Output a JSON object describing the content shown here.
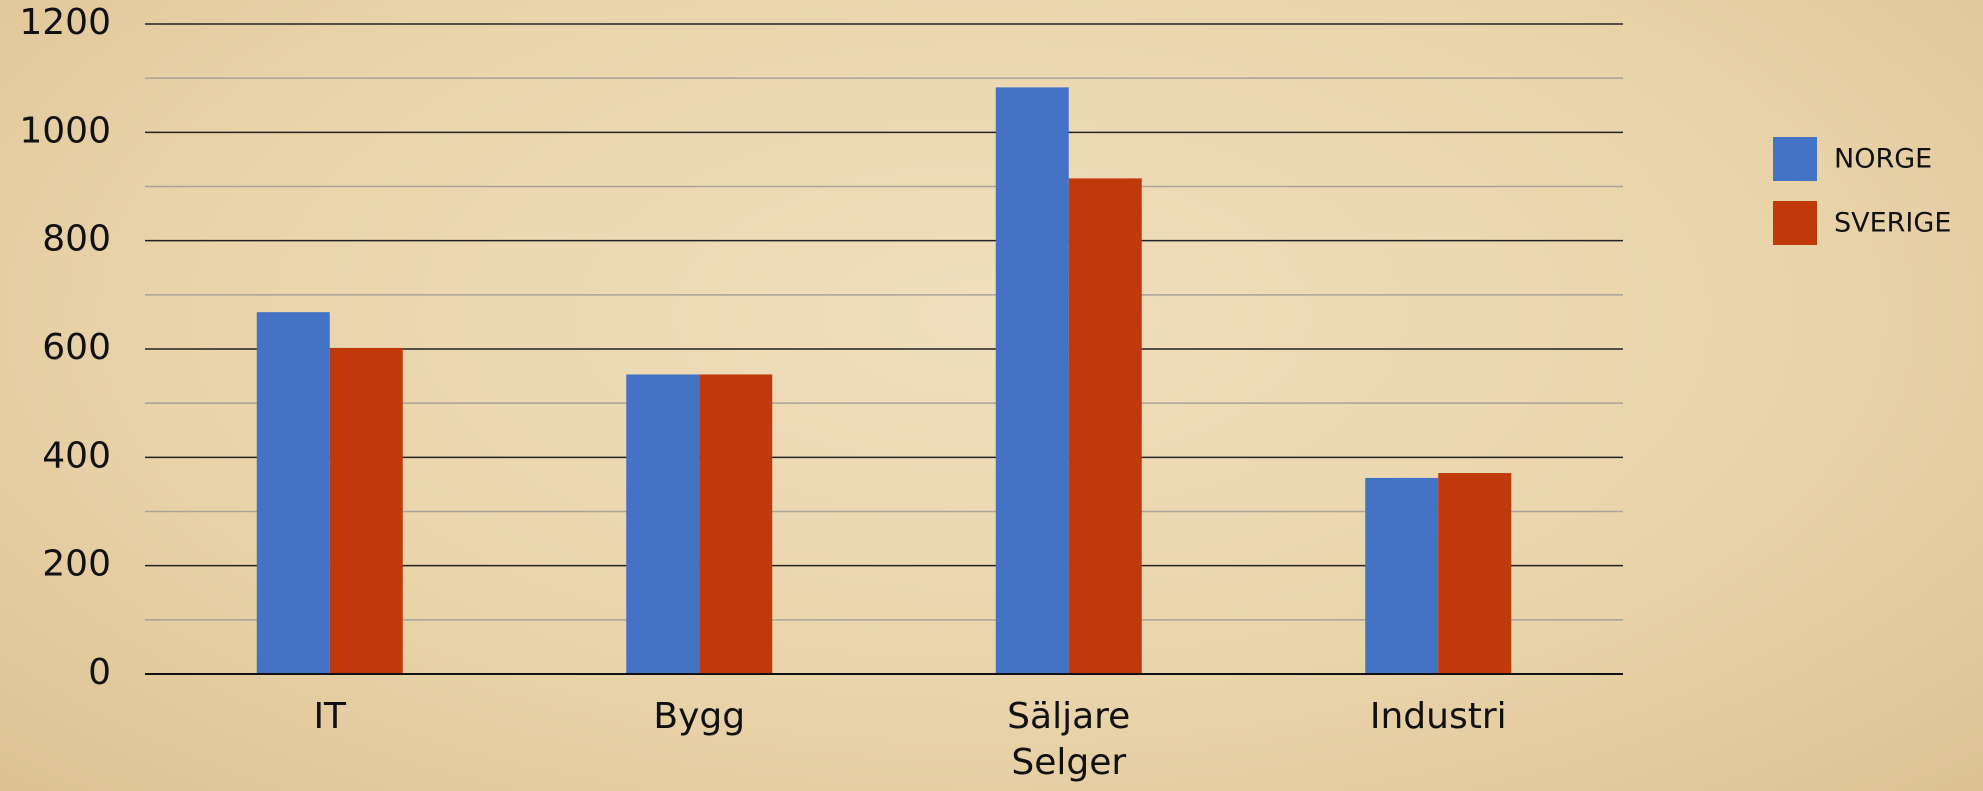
{
  "chart_data": {
    "type": "bar",
    "categories": [
      "IT",
      "Bygg",
      "Säljare\nSelger",
      "Industri"
    ],
    "series": [
      {
        "name": "NORGE",
        "color": "#4472c4",
        "values": [
          668,
          553,
          1083,
          362
        ]
      },
      {
        "name": "SVERIGE",
        "color": "#c0390b",
        "values": [
          602,
          553,
          915,
          371
        ]
      }
    ],
    "ylim": [
      0,
      1200
    ],
    "yticks": [
      0,
      200,
      400,
      600,
      800,
      1000,
      1200
    ],
    "minor_yticks": [
      100,
      300,
      500,
      700,
      900,
      1100
    ],
    "grid": true,
    "legend": "right"
  }
}
